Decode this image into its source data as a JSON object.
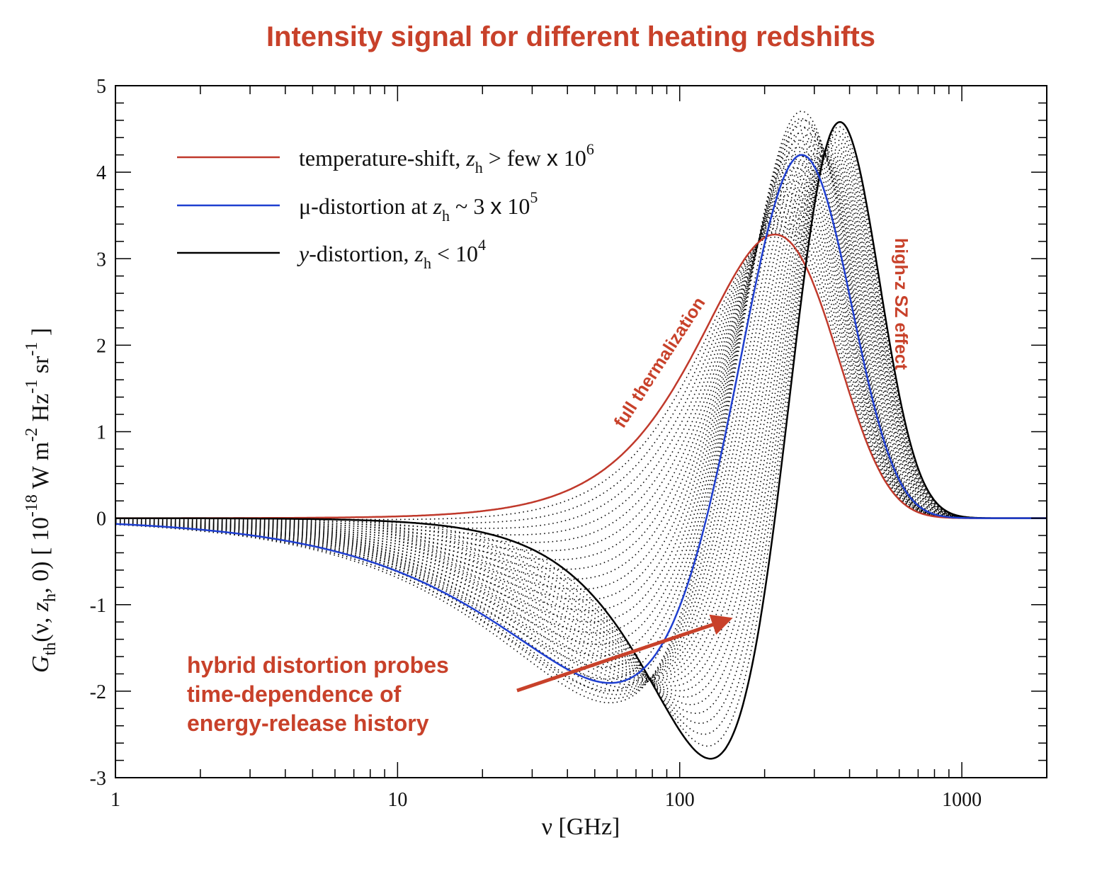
{
  "title": "Intensity signal for different heating redshifts",
  "chart_data": {
    "type": "line",
    "title": "Intensity signal for different heating redshifts",
    "xlabel": "ν [GHz]",
    "ylabel": "G_th(ν, z_h, 0)  [ 10^-18 W m^-2 Hz^-1 sr^-1 ]",
    "xscale": "log",
    "xlim": [
      1,
      2000
    ],
    "ylim": [
      -3,
      5
    ],
    "x_ticks": [
      "1",
      "10",
      "100",
      "1000"
    ],
    "y_ticks": [
      "5",
      "4",
      "3",
      "2",
      "1",
      "0",
      "-1",
      "-2",
      "-3"
    ],
    "grid": false,
    "legend_position": "top-left",
    "series": [
      {
        "name": "temperature-shift, z_h > few x 10^6",
        "color": "#c0392b",
        "style": "solid",
        "peak": {
          "x": 217,
          "y": 3.28
        },
        "x": [
          1,
          10,
          30,
          60,
          100,
          150,
          217,
          300,
          400,
          600,
          1000,
          2000
        ],
        "y": [
          0.0,
          0.01,
          0.15,
          0.78,
          1.7,
          2.7,
          3.28,
          2.78,
          1.7,
          0.45,
          0.01,
          0.0
        ]
      },
      {
        "name": "μ-distortion at z_h ~ 3 x 10^5",
        "color": "#1f3fd0",
        "style": "solid",
        "min": {
          "x": 60,
          "y": -1.93
        },
        "peak": {
          "x": 275,
          "y": 4.2
        },
        "x": [
          1,
          10,
          30,
          60,
          100,
          150,
          200,
          275,
          350,
          450,
          600,
          1000,
          2000
        ],
        "y": [
          -0.01,
          -0.35,
          -1.45,
          -1.93,
          -0.5,
          2.0,
          3.6,
          4.2,
          3.5,
          2.0,
          0.6,
          0.01,
          0.0
        ]
      },
      {
        "name": "y-distortion, z_h < 10^4",
        "color": "#000000",
        "style": "solid",
        "min": {
          "x": 127,
          "y": -2.78
        },
        "peak": {
          "x": 378,
          "y": 4.58
        },
        "x": [
          1,
          10,
          30,
          60,
          100,
          127,
          200,
          300,
          378,
          500,
          700,
          1000,
          2000
        ],
        "y": [
          0.0,
          -0.01,
          -0.35,
          -1.6,
          -2.6,
          -2.78,
          0.2,
          3.4,
          4.58,
          3.6,
          1.2,
          0.05,
          0.0
        ]
      },
      {
        "name": "intermediate hybrid distortions",
        "color": "#000000",
        "style": "dotted",
        "count": 40
      }
    ],
    "annotations": [
      {
        "text": "full thermalization",
        "color": "#c8412a",
        "near": {
          "x": 60,
          "y": 1.2
        },
        "rotation": "diagonal up"
      },
      {
        "text": "high-z SZ effect",
        "color": "#c8412a",
        "near": {
          "x": 560,
          "y": 2.9
        },
        "rotation": "vertical"
      },
      {
        "text": "hybrid distortion probes time-dependence of energy-release history",
        "color": "#c8412a",
        "arrow_to": {
          "x": 150,
          "y": -1.3
        }
      }
    ]
  },
  "legend": [
    {
      "label_main": "temperature-shift, ",
      "z": "z",
      "sub": "h",
      "rest": " > few ",
      "times": "x",
      "pow_base": " 10",
      "pow": "6",
      "color": "#c0392b"
    },
    {
      "label_main": "μ-distortion at ",
      "z": "z",
      "sub": "h",
      "rest": " ~ 3 ",
      "times": "x",
      "pow_base": " 10",
      "pow": "5",
      "color": "#1f3fd0"
    },
    {
      "label_main": "-distortion, ",
      "italic_prefix": "y",
      "z": "z",
      "sub": "h",
      "rest": " < 10",
      "pow": "4",
      "color": "#000000"
    }
  ],
  "annotations": {
    "full_thermalization": "full thermalization",
    "high_z_sz": "high-z SZ effect",
    "hybrid_lines": [
      "hybrid distortion probes",
      "time-dependence of",
      "energy-release history"
    ]
  },
  "axes": {
    "xlabel_nu": "ν",
    "xlabel_unit": " [GHz]",
    "ylabel": {
      "G": "G",
      "th": "th",
      "args1": "(ν, ",
      "z": "z",
      "h": "h",
      "args2": ", 0)  [ 10",
      "e1": "-18",
      "W": " W m",
      "e2": "-2",
      "Hz": " Hz",
      "e3": "-1",
      "sr": " sr",
      "e4": "-1",
      "close": " ]"
    }
  }
}
